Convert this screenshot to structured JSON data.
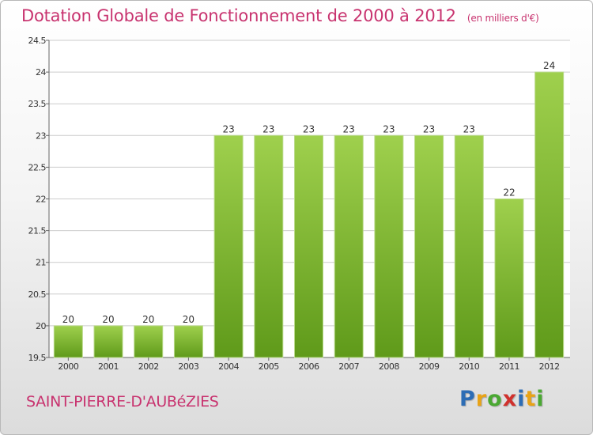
{
  "header": {
    "title": "Dotation Globale de Fonctionnement de 2000 à 2012",
    "unit": "(en milliers d'€)"
  },
  "footer": {
    "town": "SAINT-PIERRE-D'AUBéZIES",
    "brand_letters": [
      "P",
      "r",
      "o",
      "x",
      "i",
      "t",
      "i"
    ],
    "brand_colors": [
      "#2d6db5",
      "#e8a317",
      "#4aa832",
      "#d0312d",
      "#2d6db5",
      "#e8a317",
      "#4aa832"
    ]
  },
  "colors": {
    "bar_top": "#9fd04d",
    "bar_bottom": "#5f9a1a",
    "grid": "#cccccc",
    "text": "#333333"
  },
  "chart_data": {
    "type": "bar",
    "title": "Dotation Globale de Fonctionnement de 2000 à 2012",
    "categories": [
      "2000",
      "2001",
      "2002",
      "2003",
      "2004",
      "2005",
      "2006",
      "2007",
      "2008",
      "2009",
      "2010",
      "2011",
      "2012"
    ],
    "values": [
      20,
      20,
      20,
      20,
      23,
      23,
      23,
      23,
      23,
      23,
      23,
      22,
      24
    ],
    "value_labels": [
      "20",
      "20",
      "20",
      "20",
      "23",
      "23",
      "23",
      "23",
      "23",
      "23",
      "23",
      "22",
      "24"
    ],
    "ylim": [
      19.5,
      24.5
    ],
    "yticks": [
      19.5,
      20,
      20.5,
      21,
      21.5,
      22,
      22.5,
      23,
      23.5,
      24,
      24.5
    ],
    "ytick_labels": [
      "19.5",
      "20",
      "20.5",
      "21",
      "21.5",
      "22",
      "22.5",
      "23",
      "23.5",
      "24",
      "24.5"
    ],
    "grid": true,
    "xlabel": "",
    "ylabel": ""
  }
}
